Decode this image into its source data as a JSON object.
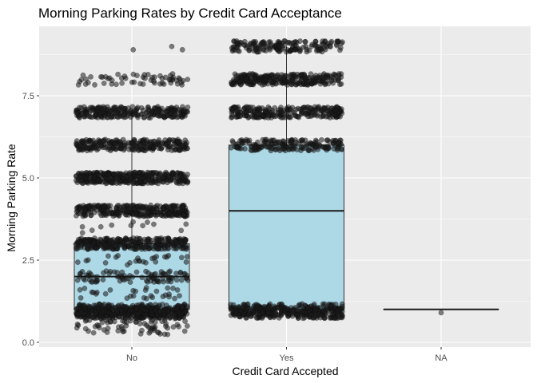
{
  "chart_data": {
    "type": "boxplot",
    "title": "Morning Parking Rates by Credit Card Acceptance",
    "xlabel": "Credit Card Accepted",
    "ylabel": "Morning Parking Rate",
    "categories": [
      "No",
      "Yes",
      "NA"
    ],
    "y_ticks": [
      {
        "value": 0,
        "label": "0.0"
      },
      {
        "value": 2.5,
        "label": "2.5"
      },
      {
        "value": 5,
        "label": "5.0"
      },
      {
        "value": 7.5,
        "label": "7.5"
      }
    ],
    "ylim": [
      -0.1,
      9.35
    ],
    "grid": true,
    "boxes": [
      {
        "category": "No",
        "min": 1,
        "q1": 1,
        "median": 2,
        "q3": 3,
        "max": 7,
        "outliers": [
          8,
          9
        ]
      },
      {
        "category": "Yes",
        "min": 1,
        "q1": 1,
        "median": 4,
        "q3": 6,
        "max": 9,
        "outliers": []
      },
      {
        "category": "NA",
        "min": 1,
        "q1": 1,
        "median": 1,
        "q3": 1,
        "max": 1,
        "outliers": []
      }
    ],
    "jitter_points": [
      {
        "category": "No",
        "levels": [
          {
            "y": 0.35,
            "n": 20
          },
          {
            "y": 0.5,
            "n": 40
          },
          {
            "y": 0.8,
            "n": 50
          },
          {
            "y": 0.9,
            "n": 260
          },
          {
            "y": 1,
            "n": 220
          },
          {
            "y": 1.5,
            "n": 30
          },
          {
            "y": 2,
            "n": 90
          },
          {
            "y": 2.5,
            "n": 25
          },
          {
            "y": 3,
            "n": 320
          },
          {
            "y": 3.5,
            "n": 12
          },
          {
            "y": 4,
            "n": 320
          },
          {
            "y": 5,
            "n": 360
          },
          {
            "y": 6,
            "n": 260
          },
          {
            "y": 7,
            "n": 260
          },
          {
            "y": 8,
            "n": 60
          },
          {
            "y": 8.9,
            "n": 2
          },
          {
            "y": 9,
            "n": 1
          }
        ]
      },
      {
        "category": "Yes",
        "levels": [
          {
            "y": 0.9,
            "n": 240
          },
          {
            "y": 1,
            "n": 180
          },
          {
            "y": 6,
            "n": 190
          },
          {
            "y": 7,
            "n": 260
          },
          {
            "y": 8,
            "n": 280
          },
          {
            "y": 9,
            "n": 170
          }
        ]
      },
      {
        "category": "NA",
        "levels": [
          {
            "y": 0.9,
            "n": 1
          }
        ]
      }
    ],
    "colors": {
      "panel": "#ebebeb",
      "grid_major": "#ffffff",
      "box_fill": "#add8e6",
      "box_line": "#333333",
      "point": "#1a1a1a",
      "point_opacity": 0.55
    }
  }
}
